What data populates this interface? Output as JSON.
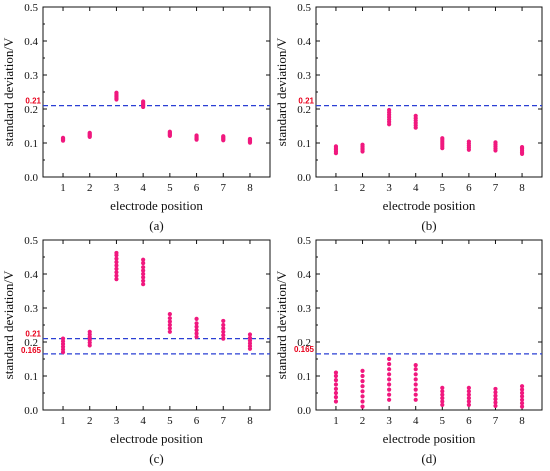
{
  "colors": {
    "point": "#f0187e",
    "reference": "#2a3fd4",
    "reference_label": "#e8001c",
    "axis": "#111111"
  },
  "chart_data": [
    {
      "type": "scatter",
      "panel_label": "(a)",
      "xlabel": "electrode position",
      "ylabel": "standard deviation/V",
      "ylim": [
        0,
        0.5
      ],
      "yticks": [
        "0.0",
        "0.1",
        "0.2",
        "0.3",
        "0.4",
        "0.5"
      ],
      "x_categories": [
        "1",
        "2",
        "3",
        "4",
        "5",
        "6",
        "7",
        "8"
      ],
      "reference_lines": [
        {
          "value": 0.21,
          "label": "0.21"
        }
      ],
      "points": [
        [
          1,
          0.107
        ],
        [
          1,
          0.109
        ],
        [
          1,
          0.111
        ],
        [
          1,
          0.113
        ],
        [
          1,
          0.115
        ],
        [
          2,
          0.118
        ],
        [
          2,
          0.121
        ],
        [
          2,
          0.124
        ],
        [
          2,
          0.127
        ],
        [
          2,
          0.13
        ],
        [
          3,
          0.228
        ],
        [
          3,
          0.232
        ],
        [
          3,
          0.236
        ],
        [
          3,
          0.24
        ],
        [
          3,
          0.244
        ],
        [
          3,
          0.248
        ],
        [
          4,
          0.206
        ],
        [
          4,
          0.21
        ],
        [
          4,
          0.214
        ],
        [
          4,
          0.218
        ],
        [
          4,
          0.222
        ],
        [
          5,
          0.121
        ],
        [
          5,
          0.124
        ],
        [
          5,
          0.127
        ],
        [
          5,
          0.13
        ],
        [
          5,
          0.133
        ],
        [
          6,
          0.11
        ],
        [
          6,
          0.113
        ],
        [
          6,
          0.116
        ],
        [
          6,
          0.119
        ],
        [
          6,
          0.122
        ],
        [
          7,
          0.108
        ],
        [
          7,
          0.111
        ],
        [
          7,
          0.114
        ],
        [
          7,
          0.117
        ],
        [
          7,
          0.12
        ],
        [
          8,
          0.101
        ],
        [
          8,
          0.104
        ],
        [
          8,
          0.107
        ],
        [
          8,
          0.11
        ],
        [
          8,
          0.112
        ]
      ]
    },
    {
      "type": "scatter",
      "panel_label": "(b)",
      "xlabel": "electrode position",
      "ylabel": "standard deviation/V",
      "ylim": [
        0,
        0.5
      ],
      "yticks": [
        "0.0",
        "0.1",
        "0.2",
        "0.3",
        "0.4",
        "0.5"
      ],
      "x_categories": [
        "1",
        "2",
        "3",
        "4",
        "5",
        "6",
        "7",
        "8"
      ],
      "reference_lines": [
        {
          "value": 0.21,
          "label": "0.21"
        }
      ],
      "points": [
        [
          1,
          0.07
        ],
        [
          1,
          0.075
        ],
        [
          1,
          0.08
        ],
        [
          1,
          0.085
        ],
        [
          1,
          0.09
        ],
        [
          2,
          0.075
        ],
        [
          2,
          0.08
        ],
        [
          2,
          0.085
        ],
        [
          2,
          0.09
        ],
        [
          2,
          0.095
        ],
        [
          3,
          0.155
        ],
        [
          3,
          0.162
        ],
        [
          3,
          0.169
        ],
        [
          3,
          0.176
        ],
        [
          3,
          0.183
        ],
        [
          3,
          0.19
        ],
        [
          3,
          0.197
        ],
        [
          4,
          0.145
        ],
        [
          4,
          0.152
        ],
        [
          4,
          0.159
        ],
        [
          4,
          0.166
        ],
        [
          4,
          0.173
        ],
        [
          4,
          0.18
        ],
        [
          5,
          0.085
        ],
        [
          5,
          0.091
        ],
        [
          5,
          0.097
        ],
        [
          5,
          0.103
        ],
        [
          5,
          0.109
        ],
        [
          5,
          0.114
        ],
        [
          6,
          0.08
        ],
        [
          6,
          0.086
        ],
        [
          6,
          0.092
        ],
        [
          6,
          0.098
        ],
        [
          6,
          0.104
        ],
        [
          7,
          0.078
        ],
        [
          7,
          0.084
        ],
        [
          7,
          0.09
        ],
        [
          7,
          0.096
        ],
        [
          7,
          0.102
        ],
        [
          8,
          0.068
        ],
        [
          8,
          0.073
        ],
        [
          8,
          0.078
        ],
        [
          8,
          0.083
        ],
        [
          8,
          0.088
        ]
      ]
    },
    {
      "type": "scatter",
      "panel_label": "(c)",
      "xlabel": "electrode position",
      "ylabel": "standard deviation/V",
      "ylim": [
        0,
        0.5
      ],
      "yticks": [
        "0.0",
        "0.1",
        "0.2",
        "0.3",
        "0.4",
        "0.5"
      ],
      "x_categories": [
        "1",
        "2",
        "3",
        "4",
        "5",
        "6",
        "7",
        "8"
      ],
      "reference_lines": [
        {
          "value": 0.21,
          "label": "0.21"
        },
        {
          "value": 0.165,
          "label": "0.165"
        }
      ],
      "points": [
        [
          1,
          0.17
        ],
        [
          1,
          0.178
        ],
        [
          1,
          0.186
        ],
        [
          1,
          0.194
        ],
        [
          1,
          0.202
        ],
        [
          1,
          0.21
        ],
        [
          2,
          0.19
        ],
        [
          2,
          0.198
        ],
        [
          2,
          0.206
        ],
        [
          2,
          0.214
        ],
        [
          2,
          0.222
        ],
        [
          2,
          0.23
        ],
        [
          3,
          0.385
        ],
        [
          3,
          0.395
        ],
        [
          3,
          0.405
        ],
        [
          3,
          0.415
        ],
        [
          3,
          0.425
        ],
        [
          3,
          0.435
        ],
        [
          3,
          0.445
        ],
        [
          3,
          0.455
        ],
        [
          3,
          0.462
        ],
        [
          4,
          0.37
        ],
        [
          4,
          0.38
        ],
        [
          4,
          0.39
        ],
        [
          4,
          0.4
        ],
        [
          4,
          0.41
        ],
        [
          4,
          0.42
        ],
        [
          4,
          0.432
        ],
        [
          4,
          0.442
        ],
        [
          5,
          0.23
        ],
        [
          5,
          0.24
        ],
        [
          5,
          0.25
        ],
        [
          5,
          0.26
        ],
        [
          5,
          0.27
        ],
        [
          5,
          0.282
        ],
        [
          6,
          0.215
        ],
        [
          6,
          0.225
        ],
        [
          6,
          0.235
        ],
        [
          6,
          0.245
        ],
        [
          6,
          0.255
        ],
        [
          6,
          0.268
        ],
        [
          7,
          0.21
        ],
        [
          7,
          0.22
        ],
        [
          7,
          0.23
        ],
        [
          7,
          0.24
        ],
        [
          7,
          0.25
        ],
        [
          7,
          0.262
        ],
        [
          8,
          0.18
        ],
        [
          8,
          0.188
        ],
        [
          8,
          0.196
        ],
        [
          8,
          0.204
        ],
        [
          8,
          0.212
        ],
        [
          8,
          0.222
        ]
      ]
    },
    {
      "type": "scatter",
      "panel_label": "(d)",
      "xlabel": "electrode position",
      "ylabel": "standard deviation/V",
      "ylim": [
        0,
        0.5
      ],
      "yticks": [
        "0.0",
        "0.1",
        "0.2",
        "0.3",
        "0.4",
        "0.5"
      ],
      "x_categories": [
        "1",
        "2",
        "3",
        "4",
        "5",
        "6",
        "7",
        "8"
      ],
      "reference_lines": [
        {
          "value": 0.165,
          "label": "0.165"
        }
      ],
      "points": [
        [
          1,
          0.025
        ],
        [
          1,
          0.038
        ],
        [
          1,
          0.05
        ],
        [
          1,
          0.062
        ],
        [
          1,
          0.075
        ],
        [
          1,
          0.088
        ],
        [
          1,
          0.1
        ],
        [
          1,
          0.11
        ],
        [
          2,
          0.01
        ],
        [
          2,
          0.025
        ],
        [
          2,
          0.04
        ],
        [
          2,
          0.055
        ],
        [
          2,
          0.07
        ],
        [
          2,
          0.085
        ],
        [
          2,
          0.1
        ],
        [
          2,
          0.115
        ],
        [
          3,
          0.03
        ],
        [
          3,
          0.045
        ],
        [
          3,
          0.06
        ],
        [
          3,
          0.075
        ],
        [
          3,
          0.09
        ],
        [
          3,
          0.105
        ],
        [
          3,
          0.12
        ],
        [
          3,
          0.135
        ],
        [
          3,
          0.15
        ],
        [
          4,
          0.03
        ],
        [
          4,
          0.045
        ],
        [
          4,
          0.06
        ],
        [
          4,
          0.075
        ],
        [
          4,
          0.09
        ],
        [
          4,
          0.105
        ],
        [
          4,
          0.12
        ],
        [
          4,
          0.132
        ],
        [
          5,
          0.015
        ],
        [
          5,
          0.025
        ],
        [
          5,
          0.035
        ],
        [
          5,
          0.045
        ],
        [
          5,
          0.055
        ],
        [
          5,
          0.065
        ],
        [
          6,
          0.015
        ],
        [
          6,
          0.025
        ],
        [
          6,
          0.035
        ],
        [
          6,
          0.045
        ],
        [
          6,
          0.055
        ],
        [
          6,
          0.065
        ],
        [
          7,
          0.012
        ],
        [
          7,
          0.022
        ],
        [
          7,
          0.032
        ],
        [
          7,
          0.042
        ],
        [
          7,
          0.052
        ],
        [
          7,
          0.062
        ],
        [
          8,
          0.01
        ],
        [
          8,
          0.02
        ],
        [
          8,
          0.03
        ],
        [
          8,
          0.04
        ],
        [
          8,
          0.05
        ],
        [
          8,
          0.06
        ],
        [
          8,
          0.07
        ]
      ]
    }
  ]
}
